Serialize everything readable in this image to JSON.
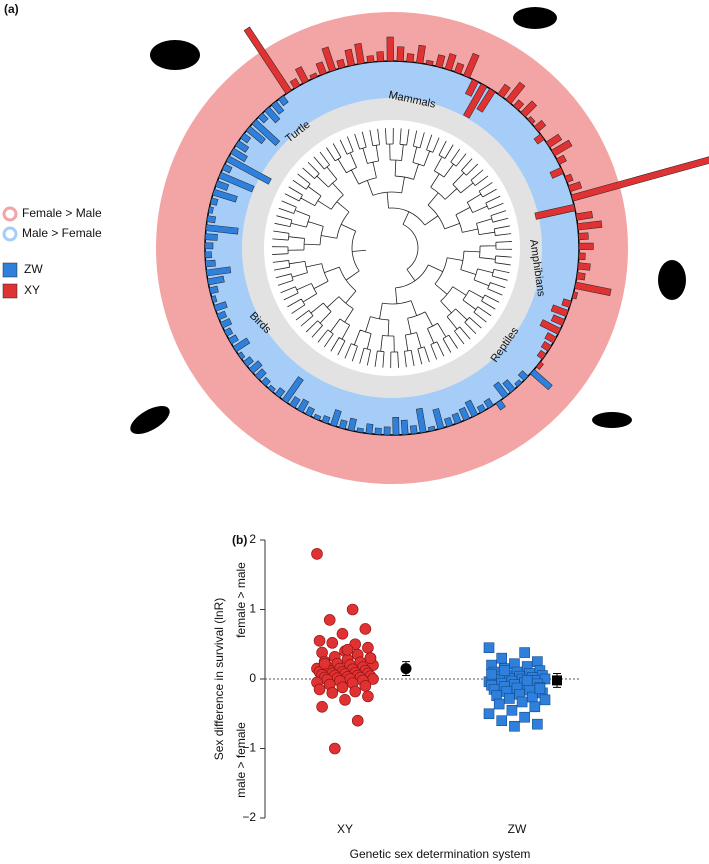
{
  "chart_data": [
    {
      "type": "radial-bar",
      "panel_label": "(a)",
      "ring_legend": [
        "Female > Male",
        "Male > Female"
      ],
      "clades": [
        "Mammals",
        "Turtle",
        "Amphibians",
        "Reptiles",
        "Birds"
      ],
      "series": [
        {
          "name": "ZW",
          "color": "#2f80dc",
          "values": [
            0.3,
            -0.1,
            -0.05,
            -0.15,
            -0.2,
            0.1,
            -0.1,
            -0.08,
            -0.2,
            -0.15,
            -0.12,
            -0.1,
            -0.25,
            -0.05,
            -0.3,
            -0.1,
            -0.18,
            -0.22,
            -0.1,
            -0.08,
            -0.12,
            -0.05,
            -0.15,
            -0.1,
            -0.2,
            -0.08,
            -0.05,
            -0.1,
            -0.15,
            -0.12,
            -0.35,
            -0.1,
            -0.05,
            -0.08,
            -0.12,
            -0.15,
            -0.1,
            -0.05,
            -0.2,
            -0.1,
            -0.08,
            -0.12,
            -0.1,
            -0.15,
            -0.05,
            -0.1,
            -0.2,
            -0.3,
            -0.12,
            -0.08,
            -0.1,
            -0.15,
            -0.4,
            -0.1,
            -0.05,
            -0.08,
            -0.3,
            -0.15,
            -0.45,
            -0.1,
            -0.6,
            -0.2,
            -0.15,
            -0.1,
            -0.25,
            -0.4,
            -0.1,
            -0.2,
            -0.15,
            -0.1
          ]
        },
        {
          "name": "XY",
          "color": "#e03232",
          "values": [
            0.95,
            0.1,
            0.2,
            0.05,
            0.15,
            0.3,
            0.1,
            0.2,
            0.25,
            0.08,
            0.12,
            0.3,
            0.18,
            0.1,
            0.22,
            0.05,
            0.15,
            0.2,
            0.12,
            0.3,
            -0.2,
            -0.45,
            -0.3,
            0.15,
            0.28,
            0.1,
            0.2,
            0.05,
            0.12,
            -0.1,
            0.18,
            0.25,
            0.1,
            -0.15,
            0.08,
            0.15,
            1.8,
            -0.5,
            0.2,
            0.3,
            0.12,
            0.18,
            0.08,
            0.15,
            0.1,
            0.45,
            0.05,
            -0.1,
            -0.2,
            -0.15,
            -0.25,
            -0.12,
            -0.1,
            -0.08,
            0.05
          ]
        }
      ]
    },
    {
      "type": "strip",
      "panel_label": "(b)",
      "ylabel": "Sex difference in survival (lnR)",
      "ylabel_upper": "female > male",
      "ylabel_lower": "male > female",
      "xlabel": "Genetic sex determination system",
      "categories": [
        "XY",
        "ZW"
      ],
      "ylim": [
        -2,
        2
      ],
      "yticks": [
        {
          "value": -2,
          "label": "−2"
        },
        {
          "value": -1,
          "label": "−1"
        },
        0,
        1,
        2
      ],
      "series": [
        {
          "name": "XY",
          "color": "#e03232",
          "marker": "circle",
          "mean": 0.15,
          "error": 0.1,
          "values": [
            1.8,
            1.0,
            0.85,
            0.72,
            0.65,
            0.55,
            0.5,
            0.52,
            0.45,
            0.4,
            0.38,
            0.35,
            0.32,
            0.3,
            0.28,
            0.25,
            0.24,
            0.22,
            0.2,
            0.2,
            0.18,
            0.17,
            0.15,
            0.15,
            0.14,
            0.12,
            0.12,
            0.1,
            0.1,
            0.09,
            0.08,
            0.08,
            0.07,
            0.06,
            0.05,
            0.05,
            0.04,
            0.03,
            0.02,
            0.02,
            0.01,
            0,
            0,
            -0.01,
            -0.02,
            -0.03,
            -0.05,
            -0.06,
            -0.08,
            -0.1,
            -0.12,
            -0.15,
            -0.18,
            -0.2,
            -0.25,
            -0.3,
            -0.4,
            -0.6,
            -1.0,
            0.3,
            0.42,
            0.22
          ]
        },
        {
          "name": "ZW",
          "color": "#2f80dc",
          "marker": "square",
          "mean": -0.02,
          "error": 0.1,
          "values": [
            0.45,
            0.38,
            0.3,
            0.25,
            0.22,
            0.2,
            0.18,
            0.15,
            0.12,
            0.1,
            0.1,
            0.08,
            0.06,
            0.05,
            0.04,
            0.03,
            0.02,
            0.01,
            0,
            0,
            -0.01,
            -0.02,
            -0.03,
            -0.04,
            -0.05,
            -0.06,
            -0.07,
            -0.08,
            -0.09,
            -0.1,
            -0.11,
            -0.12,
            -0.13,
            -0.15,
            -0.16,
            -0.18,
            -0.2,
            -0.22,
            -0.24,
            -0.26,
            -0.28,
            -0.3,
            -0.33,
            -0.36,
            -0.4,
            -0.45,
            -0.5,
            -0.55,
            -0.6,
            -0.65,
            -0.68,
            0.07,
            -0.02,
            0.12,
            -0.14
          ]
        }
      ]
    }
  ]
}
